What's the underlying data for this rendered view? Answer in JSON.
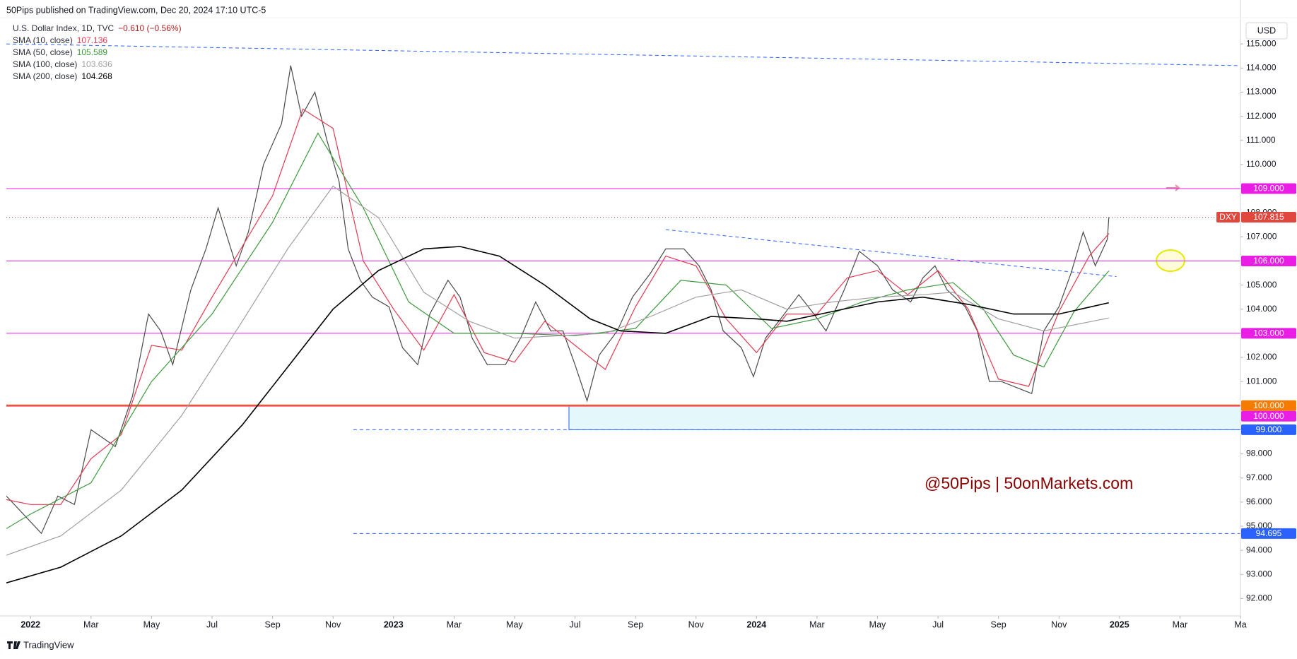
{
  "header": "50Pips published on TradingView.com, Dec 20, 2024 17:10 UTC-5",
  "currency": "USD",
  "watermark": "@50Pips | 50onMarkets.com",
  "footer": "TradingView",
  "chart_data": {
    "type": "line",
    "change": "−0.610 (−0.56%)",
    "xlim": [
      -0.8,
      40
    ],
    "ylim": [
      91.28,
      116.06
    ],
    "xticks": [
      {
        "value": 0,
        "label": "2022"
      },
      {
        "value": 2,
        "label": "Mar"
      },
      {
        "value": 4,
        "label": "May"
      },
      {
        "value": 6,
        "label": "Jul"
      },
      {
        "value": 8,
        "label": "Sep"
      },
      {
        "value": 10,
        "label": "Nov"
      },
      {
        "value": 12,
        "label": "2023"
      },
      {
        "value": 14,
        "label": "Mar"
      },
      {
        "value": 16,
        "label": "May"
      },
      {
        "value": 18,
        "label": "Jul"
      },
      {
        "value": 20,
        "label": "Sep"
      },
      {
        "value": 22,
        "label": "Nov"
      },
      {
        "value": 24,
        "label": "2024"
      },
      {
        "value": 26,
        "label": "Mar"
      },
      {
        "value": 28,
        "label": "May"
      },
      {
        "value": 30,
        "label": "Jul"
      },
      {
        "value": 32,
        "label": "Sep"
      },
      {
        "value": 34,
        "label": "Nov"
      },
      {
        "value": 36,
        "label": "2025"
      },
      {
        "value": 38,
        "label": "Mar"
      },
      {
        "value": 40,
        "label": "Ma"
      }
    ],
    "yticks": [
      {
        "value": 92,
        "label": "92.000"
      },
      {
        "value": 93,
        "label": "93.000"
      },
      {
        "value": 94,
        "label": "94.000"
      },
      {
        "value": 95,
        "label": "95.000"
      },
      {
        "value": 96,
        "label": "96.000"
      },
      {
        "value": 97,
        "label": "97.000"
      },
      {
        "value": 98,
        "label": "98.000"
      },
      {
        "value": 99,
        "label": "99.000"
      },
      {
        "value": 100,
        "label": "100.000"
      },
      {
        "value": 101,
        "label": "101.000"
      },
      {
        "value": 102,
        "label": "102.000"
      },
      {
        "value": 103,
        "label": "103.000"
      },
      {
        "value": 104,
        "label": "104.000"
      },
      {
        "value": 105,
        "label": "105.000"
      },
      {
        "value": 106,
        "label": "106.000"
      },
      {
        "value": 107,
        "label": "107.000"
      },
      {
        "value": 108,
        "label": "108.000"
      },
      {
        "value": 109,
        "label": "109.000"
      },
      {
        "value": 110,
        "label": "110.000"
      },
      {
        "value": 111,
        "label": "111.000"
      },
      {
        "value": 112,
        "label": "112.000"
      },
      {
        "value": 113,
        "label": "113.000"
      },
      {
        "value": 114,
        "label": "114.000"
      },
      {
        "value": 115,
        "label": "115.000"
      }
    ],
    "series": [
      {
        "name": "U.S. Dollar Index, 1D, TVC",
        "color": "#4a4a4a",
        "x": [
          -0.8,
          0.36,
          0.9,
          1.45,
          2.0,
          2.8,
          3.37,
          3.9,
          4.3,
          4.7,
          5.3,
          5.8,
          6.2,
          6.8,
          7.2,
          7.7,
          8.3,
          8.6,
          8.96,
          9.4,
          9.8,
          10.2,
          10.5,
          10.9,
          11.3,
          11.85,
          12.3,
          12.8,
          13.2,
          13.8,
          14.2,
          14.6,
          15.1,
          15.7,
          16.2,
          16.7,
          17.2,
          17.6,
          18.0,
          18.4,
          18.8,
          19.4,
          19.9,
          20.5,
          21.0,
          21.6,
          22.1,
          22.5,
          22.9,
          23.5,
          23.9,
          24.3,
          24.8,
          25.4,
          25.9,
          26.3,
          26.9,
          27.4,
          28.0,
          28.5,
          29.1,
          29.5,
          29.9,
          30.3,
          30.9,
          31.3,
          31.7,
          32.1,
          32.7,
          33.1,
          33.5,
          34.0,
          34.4,
          34.8,
          35.2,
          35.6,
          35.65
        ],
        "values": [
          96.25,
          94.7,
          96.25,
          95.9,
          99.0,
          98.3,
          100.4,
          103.8,
          103.1,
          101.7,
          104.8,
          106.5,
          108.2,
          105.8,
          107.2,
          110.0,
          111.7,
          114.1,
          112.0,
          113.0,
          111.0,
          109.3,
          106.5,
          105.2,
          104.5,
          104.1,
          102.4,
          101.7,
          103.8,
          105.2,
          104.5,
          102.8,
          101.7,
          101.7,
          102.8,
          104.3,
          103.1,
          103.1,
          101.7,
          100.2,
          102.1,
          103.1,
          104.5,
          105.5,
          106.5,
          106.5,
          105.8,
          104.8,
          103.1,
          102.4,
          101.2,
          102.8,
          103.6,
          104.6,
          103.8,
          103.1,
          104.8,
          106.4,
          105.8,
          104.8,
          104.3,
          105.3,
          105.8,
          104.8,
          104.1,
          103.1,
          101.0,
          101.0,
          100.7,
          100.5,
          103.1,
          104.1,
          105.5,
          107.2,
          105.8,
          106.9,
          107.815
        ]
      },
      {
        "name": "SMA (10, close)",
        "color": "#e53950",
        "last": 107.136,
        "x": [
          -0.8,
          0,
          1,
          2,
          3,
          4,
          5,
          6,
          7,
          8,
          9,
          10,
          11,
          12,
          13,
          14,
          15,
          16,
          17,
          18,
          19,
          20,
          21,
          22,
          23,
          24,
          25,
          26,
          27,
          28,
          29,
          30,
          31,
          32,
          33,
          34,
          35,
          35.65
        ],
        "values": [
          96.1,
          95.9,
          95.9,
          97.8,
          98.8,
          102.5,
          102.3,
          104.5,
          106.6,
          108.7,
          112.3,
          111.5,
          106.0,
          104.0,
          102.3,
          104.6,
          102.2,
          101.8,
          103.5,
          102.5,
          101.5,
          104.1,
          106.2,
          105.8,
          103.6,
          102.2,
          103.8,
          103.8,
          105.3,
          105.6,
          104.6,
          105.6,
          104.0,
          101.1,
          100.8,
          103.9,
          106.2,
          107.136
        ]
      },
      {
        "name": "SMA (50, close)",
        "color": "#3d9a3d",
        "last": 105.589,
        "x": [
          -0.8,
          0,
          2,
          4,
          6,
          8,
          9.5,
          11,
          12.5,
          14,
          16,
          18,
          20,
          21.5,
          23,
          24.5,
          26,
          27.5,
          29,
          30.5,
          31.5,
          32.5,
          33.5,
          34.5,
          35.65
        ],
        "values": [
          94.9,
          95.5,
          96.8,
          101.0,
          103.8,
          107.6,
          111.3,
          108.2,
          104.3,
          103.0,
          103.0,
          102.9,
          103.2,
          105.2,
          105.0,
          103.2,
          103.6,
          104.3,
          104.8,
          105.1,
          104.0,
          102.1,
          101.6,
          103.9,
          105.589
        ]
      },
      {
        "name": "SMA (100, close)",
        "color": "#a0a0a0",
        "last": 103.636,
        "x": [
          -0.8,
          1,
          3,
          5,
          7,
          8.5,
          10,
          11.5,
          13,
          14.5,
          16,
          17.5,
          19,
          20.5,
          22,
          23.5,
          25,
          26.5,
          28,
          29.5,
          30.5,
          32,
          33.5,
          35.65
        ],
        "values": [
          93.8,
          94.6,
          96.5,
          99.6,
          103.5,
          106.5,
          109.1,
          107.8,
          104.7,
          103.5,
          102.8,
          102.9,
          103.0,
          103.7,
          104.5,
          104.8,
          104.0,
          104.3,
          104.5,
          104.6,
          104.7,
          103.6,
          103.1,
          103.636
        ]
      },
      {
        "name": "SMA (200, close)",
        "color": "#000000",
        "last": 104.268,
        "x": [
          -0.8,
          1,
          3,
          5,
          7,
          8.5,
          10,
          11.5,
          13,
          14.2,
          15.5,
          17,
          18.5,
          19.5,
          21,
          22.5,
          24,
          25,
          26.5,
          28,
          29.5,
          31,
          32.5,
          34,
          35.65
        ],
        "values": [
          92.65,
          93.3,
          94.6,
          96.5,
          99.2,
          101.6,
          104.0,
          105.6,
          106.5,
          106.6,
          106.2,
          105.0,
          103.6,
          103.1,
          103.0,
          103.7,
          103.6,
          103.5,
          103.9,
          104.3,
          104.5,
          104.2,
          103.8,
          103.8,
          104.268
        ]
      }
    ],
    "levels": [
      {
        "value": 109,
        "label": "109.000",
        "color": "#e91ee5",
        "style": "solid"
      },
      {
        "value": 106,
        "label": "106.000",
        "color": "#e91ee5",
        "style": "solid"
      },
      {
        "value": 103,
        "label": "103.000",
        "color": "#e91ee5",
        "style": "solid"
      },
      {
        "value": 100,
        "label": "100.000",
        "color": "#f57c00",
        "style": "thick"
      },
      {
        "value": 100,
        "label": "100.000",
        "color": "#e91ee5",
        "style": "solid"
      },
      {
        "value": 99,
        "label": "99.000",
        "color": "#2962ff",
        "style": "dashed",
        "start": 10.67
      },
      {
        "value": 94.695,
        "label": "94.695",
        "color": "#2962ff",
        "style": "dashed",
        "start": 10.67
      }
    ],
    "last_price": {
      "symbol": "DXY",
      "value": 107.815,
      "label": "107.815",
      "color": "#e0483e"
    },
    "zone": {
      "x_start": 17.8,
      "top": 100,
      "bottom": 99,
      "color": "#e4f7fb",
      "border": "#2962ff"
    },
    "trendlines": [
      {
        "x": [
          -0.8,
          40
        ],
        "y": [
          115,
          114.1
        ],
        "color": "#2962ff"
      },
      {
        "x": [
          21.0,
          35.9
        ],
        "y": [
          107.3,
          105.35
        ],
        "color": "#2962ff"
      }
    ]
  }
}
